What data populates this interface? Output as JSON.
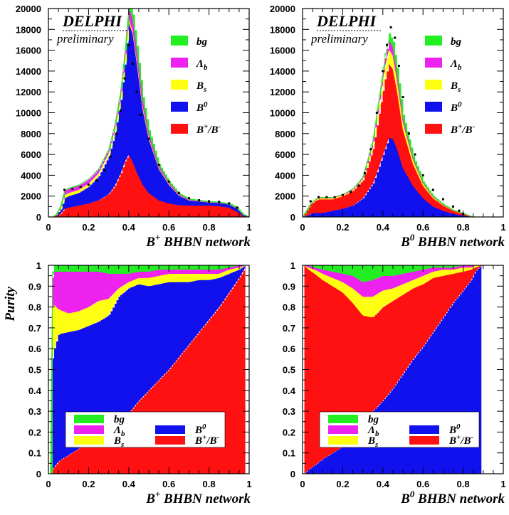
{
  "colors": {
    "bg": "#22ee22",
    "lambda_b": "#ee22ee",
    "B_s": "#ffff11",
    "B0": "#1111ee",
    "Bpm": "#ff1111",
    "data_points": "#000000",
    "frame": "#000000"
  },
  "chart_data": [
    {
      "type": "area",
      "panel": "top-left",
      "logo": "DELPHI",
      "note": "preliminary",
      "xlabel": "B+ BHBN network",
      "xlabel_parts": {
        "base": "B",
        "sup": "+",
        "rest": " BHBN network"
      },
      "xlim": [
        0,
        1
      ],
      "ylim": [
        0,
        20000
      ],
      "xticks": [
        "0",
        "0.2",
        "0.4",
        "0.6",
        "0.8",
        "1"
      ],
      "yticks": [
        "0",
        "2000",
        "4000",
        "6000",
        "8000",
        "10000",
        "12000",
        "14000",
        "16000",
        "18000",
        "20000"
      ],
      "legend": [
        {
          "key": "bg",
          "label": "bg"
        },
        {
          "key": "lambda_b",
          "label": "Λb"
        },
        {
          "key": "B_s",
          "label": "Bs"
        },
        {
          "key": "B0",
          "label": "B0"
        },
        {
          "key": "Bpm",
          "label": "B+/B-"
        }
      ],
      "legend_position": "right",
      "x": [
        0.0,
        0.02,
        0.04,
        0.06,
        0.08,
        0.1,
        0.15,
        0.2,
        0.25,
        0.3,
        0.33,
        0.36,
        0.38,
        0.4,
        0.42,
        0.44,
        0.47,
        0.5,
        0.55,
        0.6,
        0.65,
        0.7,
        0.75,
        0.8,
        0.85,
        0.9,
        0.94,
        0.97,
        1.0
      ],
      "series": [
        {
          "key": "Bpm",
          "name": "B+/B-",
          "values": [
            0,
            0,
            100,
            300,
            800,
            900,
            1100,
            1300,
            1600,
            2200,
            3000,
            4200,
            5300,
            6000,
            5300,
            4300,
            3100,
            2300,
            1600,
            1300,
            1150,
            1100,
            1100,
            1100,
            1050,
            900,
            500,
            100,
            0
          ]
        },
        {
          "key": "B0",
          "name": "B0",
          "values": [
            0,
            0,
            100,
            400,
            1000,
            1100,
            1200,
            1600,
            2300,
            3600,
            5000,
            7000,
            9300,
            12700,
            12300,
            10500,
            7200,
            5200,
            3000,
            1800,
            900,
            500,
            400,
            300,
            300,
            300,
            300,
            100,
            0
          ]
        },
        {
          "key": "B_s",
          "name": "Bs",
          "values": [
            0,
            0,
            50,
            150,
            300,
            300,
            300,
            300,
            300,
            300,
            300,
            300,
            300,
            300,
            300,
            300,
            300,
            200,
            100,
            80,
            50,
            40,
            30,
            20,
            20,
            20,
            20,
            10,
            0
          ]
        },
        {
          "key": "lambda_b",
          "name": "Λb",
          "values": [
            0,
            0,
            50,
            200,
            400,
            400,
            400,
            400,
            400,
            400,
            500,
            600,
            800,
            1200,
            1200,
            1000,
            700,
            400,
            250,
            150,
            100,
            60,
            40,
            30,
            30,
            30,
            30,
            10,
            0
          ]
        },
        {
          "key": "bg",
          "name": "bg",
          "values": [
            0,
            0,
            20,
            50,
            100,
            100,
            100,
            100,
            100,
            100,
            200,
            300,
            300,
            300,
            300,
            300,
            200,
            200,
            100,
            70,
            50,
            50,
            50,
            50,
            50,
            50,
            50,
            20,
            0
          ]
        }
      ],
      "data_points": [
        [
          0.08,
          2600
        ],
        [
          0.12,
          2700
        ],
        [
          0.16,
          2900
        ],
        [
          0.2,
          3100
        ],
        [
          0.24,
          3500
        ],
        [
          0.28,
          4500
        ],
        [
          0.31,
          5800
        ],
        [
          0.34,
          8000
        ],
        [
          0.36,
          10200
        ],
        [
          0.38,
          13300
        ],
        [
          0.4,
          16500
        ],
        [
          0.42,
          14700
        ],
        [
          0.44,
          12000
        ],
        [
          0.46,
          9800
        ],
        [
          0.5,
          7500
        ],
        [
          0.55,
          5000
        ],
        [
          0.6,
          3400
        ],
        [
          0.65,
          2300
        ],
        [
          0.7,
          1800
        ],
        [
          0.75,
          1600
        ],
        [
          0.8,
          1500
        ],
        [
          0.85,
          1450
        ],
        [
          0.9,
          1300
        ],
        [
          0.94,
          900
        ]
      ]
    },
    {
      "type": "area",
      "panel": "top-right",
      "logo": "DELPHI",
      "note": "preliminary",
      "xlabel": "B0 BHBN network",
      "xlabel_parts": {
        "base": "B",
        "sup": "0",
        "rest": " BHBN network"
      },
      "xlim": [
        0,
        1
      ],
      "ylim": [
        0,
        20000
      ],
      "xticks": [
        "0",
        "0.2",
        "0.4",
        "0.6",
        "0.8",
        "1"
      ],
      "yticks": [
        "0",
        "2000",
        "4000",
        "6000",
        "8000",
        "10000",
        "12000",
        "14000",
        "16000",
        "18000",
        "20000"
      ],
      "legend": [
        {
          "key": "bg",
          "label": "bg"
        },
        {
          "key": "lambda_b",
          "label": "Λb"
        },
        {
          "key": "B_s",
          "label": "Bs"
        },
        {
          "key": "B0",
          "label": "B0"
        },
        {
          "key": "Bpm",
          "label": "B+/B-"
        }
      ],
      "legend_position": "right",
      "x": [
        0.0,
        0.02,
        0.04,
        0.06,
        0.08,
        0.1,
        0.15,
        0.2,
        0.25,
        0.3,
        0.35,
        0.38,
        0.41,
        0.43,
        0.45,
        0.47,
        0.5,
        0.55,
        0.6,
        0.65,
        0.7,
        0.75,
        0.8,
        0.83,
        0.85,
        1.0
      ],
      "series": [
        {
          "key": "B0",
          "name": "B0",
          "values": [
            0,
            100,
            300,
            400,
            400,
            400,
            600,
            800,
            1100,
            1800,
            3200,
            4800,
            6500,
            7600,
            7500,
            6600,
            4700,
            3000,
            1800,
            1000,
            600,
            300,
            150,
            50,
            0,
            0
          ]
        },
        {
          "key": "Bpm",
          "name": "B+/B-",
          "values": [
            0,
            500,
            900,
            1100,
            1300,
            1300,
            1100,
            1200,
            1400,
            1700,
            3300,
            5100,
            6700,
            7100,
            6700,
            5600,
            3700,
            2100,
            1200,
            800,
            500,
            300,
            150,
            50,
            0,
            0
          ]
        },
        {
          "key": "B_s",
          "name": "Bs",
          "values": [
            0,
            30,
            60,
            80,
            100,
            100,
            100,
            100,
            100,
            200,
            500,
            900,
            1200,
            1400,
            1300,
            1000,
            700,
            400,
            200,
            100,
            60,
            30,
            20,
            0,
            0,
            0
          ]
        },
        {
          "key": "lambda_b",
          "name": "Λb",
          "values": [
            0,
            20,
            40,
            50,
            60,
            60,
            60,
            60,
            80,
            100,
            300,
            500,
            800,
            900,
            800,
            700,
            400,
            200,
            100,
            50,
            30,
            20,
            10,
            0,
            0,
            0
          ]
        },
        {
          "key": "bg",
          "name": "bg",
          "values": [
            0,
            10,
            20,
            30,
            40,
            40,
            40,
            40,
            60,
            100,
            300,
            400,
            500,
            600,
            500,
            400,
            300,
            150,
            80,
            40,
            20,
            10,
            10,
            0,
            0,
            0
          ]
        }
      ],
      "data_points": [
        [
          0.04,
          1500
        ],
        [
          0.08,
          1900
        ],
        [
          0.12,
          1900
        ],
        [
          0.16,
          1900
        ],
        [
          0.2,
          2100
        ],
        [
          0.24,
          2400
        ],
        [
          0.28,
          3000
        ],
        [
          0.31,
          4200
        ],
        [
          0.34,
          6500
        ],
        [
          0.37,
          10000
        ],
        [
          0.4,
          14000
        ],
        [
          0.42,
          16500
        ],
        [
          0.44,
          18200
        ],
        [
          0.46,
          17200
        ],
        [
          0.48,
          14500
        ],
        [
          0.5,
          11500
        ],
        [
          0.53,
          8000
        ],
        [
          0.56,
          6000
        ],
        [
          0.6,
          4000
        ],
        [
          0.65,
          2600
        ],
        [
          0.7,
          1700
        ],
        [
          0.75,
          1000
        ],
        [
          0.78,
          600
        ],
        [
          0.8,
          300
        ]
      ]
    },
    {
      "type": "area",
      "panel": "bottom-left",
      "xlabel": "B+ BHBN network",
      "xlabel_parts": {
        "base": "B",
        "sup": "+",
        "rest": " BHBN network"
      },
      "ylabel": "Purity",
      "xlim": [
        0,
        1
      ],
      "ylim": [
        0,
        1
      ],
      "xticks": [
        "0",
        "0.2",
        "0.4",
        "0.6",
        "0.8",
        "1"
      ],
      "yticks": [
        "0",
        "0.1",
        "0.2",
        "0.3",
        "0.4",
        "0.5",
        "0.6",
        "0.7",
        "0.8",
        "0.9",
        "1"
      ],
      "legend": [
        {
          "key": "bg",
          "label": "bg"
        },
        {
          "key": "lambda_b",
          "label": "Λb"
        },
        {
          "key": "B_s",
          "label": "Bs"
        },
        {
          "key": "B0",
          "label": "B0"
        },
        {
          "key": "Bpm",
          "label": "B+/B-"
        }
      ],
      "legend_position": "bottom",
      "x": [
        0.01,
        0.02,
        0.05,
        0.1,
        0.15,
        0.2,
        0.25,
        0.3,
        0.35,
        0.4,
        0.45,
        0.5,
        0.55,
        0.6,
        0.65,
        0.7,
        0.75,
        0.8,
        0.85,
        0.9,
        0.95,
        0.98
      ],
      "series": [
        {
          "key": "Bpm",
          "name": "B+/B-",
          "values": [
            0.0,
            0.02,
            0.06,
            0.09,
            0.12,
            0.15,
            0.17,
            0.2,
            0.25,
            0.29,
            0.35,
            0.4,
            0.45,
            0.5,
            0.56,
            0.62,
            0.68,
            0.74,
            0.8,
            0.87,
            0.94,
            0.99
          ]
        },
        {
          "key": "B0",
          "name": "B0",
          "values": [
            0.0,
            0.55,
            0.61,
            0.59,
            0.57,
            0.56,
            0.56,
            0.56,
            0.6,
            0.6,
            0.56,
            0.5,
            0.46,
            0.42,
            0.36,
            0.3,
            0.25,
            0.19,
            0.14,
            0.09,
            0.04,
            0.01
          ]
        },
        {
          "key": "B_s",
          "name": "Bs",
          "values": [
            0.0,
            0.25,
            0.12,
            0.09,
            0.09,
            0.09,
            0.1,
            0.08,
            0.04,
            0.03,
            0.03,
            0.04,
            0.04,
            0.04,
            0.04,
            0.04,
            0.03,
            0.03,
            0.02,
            0.02,
            0.01,
            0.0
          ]
        },
        {
          "key": "lambda_b",
          "name": "Λb",
          "values": [
            0.0,
            0.15,
            0.18,
            0.2,
            0.19,
            0.17,
            0.14,
            0.12,
            0.07,
            0.04,
            0.03,
            0.03,
            0.03,
            0.02,
            0.02,
            0.02,
            0.02,
            0.02,
            0.02,
            0.01,
            0.01,
            0.0
          ]
        },
        {
          "key": "bg",
          "name": "bg",
          "values": [
            0.0,
            0.03,
            0.03,
            0.03,
            0.03,
            0.03,
            0.03,
            0.04,
            0.04,
            0.04,
            0.03,
            0.03,
            0.02,
            0.02,
            0.02,
            0.02,
            0.02,
            0.02,
            0.02,
            0.01,
            0.0,
            0.0
          ]
        }
      ]
    },
    {
      "type": "area",
      "panel": "bottom-right",
      "xlabel": "B0 BHBN network",
      "xlabel_parts": {
        "base": "B",
        "sup": "0",
        "rest": " BHBN network"
      },
      "xlim": [
        0,
        1
      ],
      "ylim": [
        0,
        1
      ],
      "xticks": [
        "0",
        "0.2",
        "0.4",
        "0.6",
        "0.8",
        "1"
      ],
      "yticks": [
        "0",
        "0.1",
        "0.2",
        "0.3",
        "0.4",
        "0.5",
        "0.6",
        "0.7",
        "0.8",
        "0.9",
        "1"
      ],
      "legend": [
        {
          "key": "bg",
          "label": "bg"
        },
        {
          "key": "lambda_b",
          "label": "Λb"
        },
        {
          "key": "B_s",
          "label": "Bs"
        },
        {
          "key": "B0",
          "label": "B0"
        },
        {
          "key": "Bpm",
          "label": "B+/B-"
        }
      ],
      "legend_position": "bottom",
      "x": [
        0.01,
        0.03,
        0.06,
        0.1,
        0.15,
        0.2,
        0.25,
        0.3,
        0.35,
        0.4,
        0.45,
        0.5,
        0.55,
        0.6,
        0.65,
        0.7,
        0.75,
        0.8,
        0.84,
        0.86,
        0.89
      ],
      "series": [
        {
          "key": "B0",
          "name": "B0",
          "values": [
            0.0,
            0.02,
            0.04,
            0.07,
            0.1,
            0.13,
            0.18,
            0.24,
            0.3,
            0.35,
            0.41,
            0.48,
            0.55,
            0.61,
            0.68,
            0.75,
            0.82,
            0.88,
            0.93,
            0.97,
            1.0
          ]
        },
        {
          "key": "Bpm",
          "name": "B+/B-",
          "values": [
            1.0,
            0.96,
            0.92,
            0.86,
            0.8,
            0.74,
            0.64,
            0.52,
            0.45,
            0.45,
            0.42,
            0.38,
            0.34,
            0.3,
            0.26,
            0.2,
            0.14,
            0.09,
            0.05,
            0.02,
            0.0
          ]
        },
        {
          "key": "B_s",
          "name": "Bs",
          "values": [
            0.0,
            0.01,
            0.02,
            0.03,
            0.04,
            0.05,
            0.07,
            0.09,
            0.1,
            0.08,
            0.06,
            0.05,
            0.04,
            0.04,
            0.03,
            0.03,
            0.02,
            0.02,
            0.01,
            0.01,
            0.0
          ]
        },
        {
          "key": "lambda_b",
          "name": "Λb",
          "values": [
            0.0,
            0.01,
            0.01,
            0.02,
            0.03,
            0.04,
            0.06,
            0.07,
            0.08,
            0.07,
            0.06,
            0.05,
            0.04,
            0.03,
            0.02,
            0.01,
            0.01,
            0.01,
            0.01,
            0.0,
            0.0
          ]
        },
        {
          "key": "bg",
          "name": "bg",
          "values": [
            0.0,
            0.0,
            0.01,
            0.02,
            0.03,
            0.04,
            0.05,
            0.08,
            0.07,
            0.05,
            0.05,
            0.04,
            0.03,
            0.02,
            0.01,
            0.01,
            0.01,
            0.0,
            0.0,
            0.0,
            0.0
          ]
        }
      ]
    }
  ]
}
